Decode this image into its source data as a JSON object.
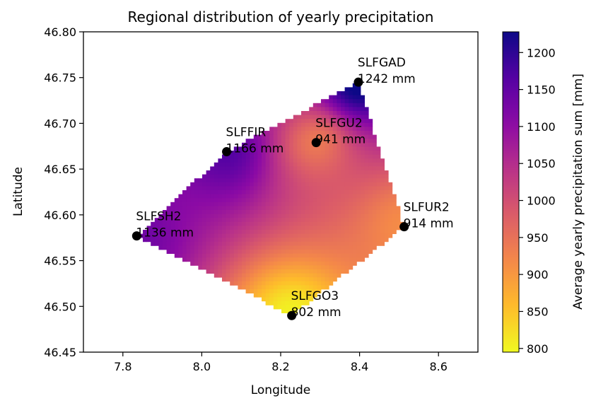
{
  "chart_data": {
    "type": "heatmap",
    "title": "Regional distribution of yearly precipitation",
    "xlabel": "Longitude",
    "ylabel": "Latitude",
    "xlim": [
      7.7,
      8.7
    ],
    "ylim": [
      46.45,
      46.8
    ],
    "xticks": [
      "7.8",
      "8.0",
      "8.2",
      "8.4",
      "8.6"
    ],
    "yticks": [
      "46.45",
      "46.50",
      "46.55",
      "46.60",
      "46.65",
      "46.70",
      "46.75",
      "46.80"
    ],
    "colorbar": {
      "label": "Average yearly precipitation sum [mm]",
      "range": [
        795,
        1228
      ],
      "ticks": [
        "800",
        "850",
        "900",
        "950",
        "1000",
        "1050",
        "1100",
        "1150",
        "1200"
      ],
      "colormap": "plasma_r"
    },
    "interpolation": "inverse-distance weighted grid inside convex hull of stations",
    "stations": [
      {
        "name": "SLFGAD",
        "value_label": "1242 mm",
        "lon": 8.397,
        "lat": 46.745,
        "value": 1242
      },
      {
        "name": "SLFGU2",
        "value_label": "941 mm",
        "lon": 8.29,
        "lat": 46.679,
        "value": 941
      },
      {
        "name": "SLFFIR",
        "value_label": "1166 mm",
        "lon": 8.063,
        "lat": 46.669,
        "value": 1166
      },
      {
        "name": "SLFSH2",
        "value_label": "1136 mm",
        "lon": 7.835,
        "lat": 46.577,
        "value": 1136
      },
      {
        "name": "SLFUR2",
        "value_label": "914 mm",
        "lon": 8.513,
        "lat": 46.587,
        "value": 914
      },
      {
        "name": "SLFGO3",
        "value_label": "802 mm",
        "lon": 8.228,
        "lat": 46.49,
        "value": 802
      }
    ]
  }
}
